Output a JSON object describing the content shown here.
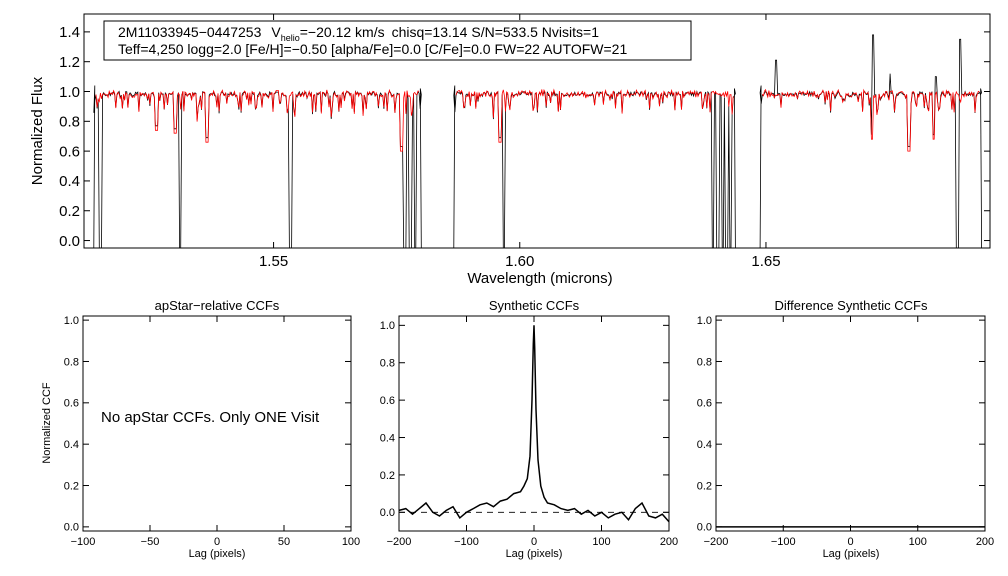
{
  "chart_data": [
    {
      "type": "line",
      "panel": "spectrum",
      "title": "",
      "xlabel": "Wavelength (microns)",
      "ylabel": "Normalized Flux",
      "xlim": [
        1.5115,
        1.6955
      ],
      "ylim": [
        -0.05,
        1.52
      ],
      "xticks": [
        {
          "value": 1.55,
          "label": "1.55"
        },
        {
          "value": 1.6,
          "label": "1.60"
        },
        {
          "value": 1.65,
          "label": "1.65"
        }
      ],
      "yticks": [
        {
          "value": 0.0,
          "label": "0.0"
        },
        {
          "value": 0.2,
          "label": "0.2"
        },
        {
          "value": 0.4,
          "label": "0.4"
        },
        {
          "value": 0.6,
          "label": "0.6"
        },
        {
          "value": 0.8,
          "label": "0.8"
        },
        {
          "value": 1.0,
          "label": "1.0"
        },
        {
          "value": 1.2,
          "label": "1.2"
        },
        {
          "value": 1.4,
          "label": "1.4"
        }
      ],
      "annotation": {
        "line1": {
          "star_id": "2M11033945−0447253",
          "vhelio_prefix": "V",
          "vhelio_sub": "helio",
          "vhelio_value": "=−20.12 km/s",
          "rest": "chisq=13.14  S/N=533.5  Nvisits=1"
        },
        "line2": "Teff=4,250 logg=2.0 [Fe/H]=−0.50 [alpha/Fe]=0.0 [C/Fe]=0.0 FW=22 AUTOFW=21"
      },
      "chips": [
        [
          1.5135,
          1.58
        ],
        [
          1.5866,
          1.6438
        ],
        [
          1.6488,
          1.6938
        ]
      ],
      "series": [
        {
          "name": "observed",
          "color": "#000000"
        },
        {
          "name": "synthetic",
          "color": "#ff0000"
        }
      ],
      "deep_features": [
        1.5148,
        1.531,
        1.5535,
        1.5766,
        1.5778,
        1.5788,
        1.5968,
        1.6392,
        1.6402,
        1.6412,
        1.642,
        1.6428,
        1.6888
      ],
      "emission_spikes": [
        {
          "x": 1.6718,
          "y": 1.38
        },
        {
          "x": 1.6895,
          "y": 1.35
        },
        {
          "x": 1.6752,
          "y": 1.12
        },
        {
          "x": 1.6845,
          "y": 1.1
        },
        {
          "x": 1.652,
          "y": 1.21
        }
      ],
      "red_dips": [
        {
          "x": 1.5262,
          "y": 0.74
        },
        {
          "x": 1.53,
          "y": 0.72
        },
        {
          "x": 1.5365,
          "y": 0.66
        },
        {
          "x": 1.576,
          "y": 0.6
        },
        {
          "x": 1.596,
          "y": 0.66
        },
        {
          "x": 1.6715,
          "y": 0.68
        },
        {
          "x": 1.679,
          "y": 0.6
        },
        {
          "x": 1.684,
          "y": 0.68
        }
      ]
    },
    {
      "type": "line",
      "panel": "apstar",
      "title": "apStar−relative CCFs",
      "xlabel": "Lag (pixels)",
      "ylabel": "Normalized CCF",
      "xlim": [
        -100,
        100
      ],
      "ylim": [
        -0.02,
        1.02
      ],
      "xticks": [
        {
          "value": -100,
          "label": "−100"
        },
        {
          "value": -50,
          "label": "−50"
        },
        {
          "value": 0,
          "label": "0"
        },
        {
          "value": 50,
          "label": "50"
        },
        {
          "value": 100,
          "label": "100"
        }
      ],
      "yticks": [
        {
          "value": 0.0,
          "label": "0.0"
        },
        {
          "value": 0.2,
          "label": "0.2"
        },
        {
          "value": 0.4,
          "label": "0.4"
        },
        {
          "value": 0.6,
          "label": "0.6"
        },
        {
          "value": 0.8,
          "label": "0.8"
        },
        {
          "value": 1.0,
          "label": "1.0"
        }
      ],
      "message": "No apStar CCFs.  Only ONE Visit"
    },
    {
      "type": "line",
      "panel": "synthetic",
      "title": "Synthetic CCFs",
      "xlabel": "Lag (pixels)",
      "xlim": [
        -200,
        200
      ],
      "ylim": [
        -0.1,
        1.05
      ],
      "xticks": [
        {
          "value": -200,
          "label": "−200"
        },
        {
          "value": -100,
          "label": "−100"
        },
        {
          "value": 0,
          "label": "0"
        },
        {
          "value": 100,
          "label": "100"
        },
        {
          "value": 200,
          "label": "200"
        }
      ],
      "yticks": [
        {
          "value": 0.0,
          "label": "0.0"
        },
        {
          "value": 0.2,
          "label": "0.2"
        },
        {
          "value": 0.4,
          "label": "0.4"
        },
        {
          "value": 0.6,
          "label": "0.6"
        },
        {
          "value": 0.8,
          "label": "0.8"
        },
        {
          "value": 1.0,
          "label": "1.0"
        }
      ],
      "zero_line": 0.0,
      "series": [
        {
          "name": "CCF",
          "x": [
            -200,
            -190,
            -180,
            -170,
            -160,
            -150,
            -140,
            -130,
            -120,
            -110,
            -100,
            -90,
            -80,
            -70,
            -60,
            -50,
            -40,
            -30,
            -20,
            -15,
            -10,
            -6,
            -3,
            -1,
            0,
            1,
            3,
            6,
            10,
            15,
            20,
            30,
            40,
            50,
            60,
            70,
            80,
            90,
            100,
            110,
            120,
            130,
            140,
            150,
            160,
            170,
            180,
            190,
            200
          ],
          "y": [
            0.01,
            0.02,
            -0.01,
            0.02,
            0.05,
            0.0,
            -0.02,
            0.01,
            0.03,
            -0.03,
            0.0,
            0.02,
            0.04,
            0.05,
            0.03,
            0.06,
            0.07,
            0.1,
            0.11,
            0.14,
            0.18,
            0.3,
            0.6,
            0.9,
            1.0,
            0.88,
            0.55,
            0.28,
            0.14,
            0.08,
            0.05,
            0.04,
            0.02,
            0.01,
            0.02,
            -0.01,
            0.01,
            -0.02,
            0.0,
            -0.03,
            -0.01,
            0.0,
            -0.04,
            0.02,
            0.05,
            -0.02,
            -0.03,
            -0.01,
            -0.05
          ]
        }
      ]
    },
    {
      "type": "line",
      "panel": "difference",
      "title": "Difference Synthetic CCFs",
      "xlabel": "Lag (pixels)",
      "xlim": [
        -200,
        200
      ],
      "ylim": [
        -0.02,
        1.02
      ],
      "xticks": [
        {
          "value": -200,
          "label": "−200"
        },
        {
          "value": -100,
          "label": "−100"
        },
        {
          "value": 0,
          "label": "0"
        },
        {
          "value": 100,
          "label": "100"
        },
        {
          "value": 200,
          "label": "200"
        }
      ],
      "yticks": [
        {
          "value": 0.0,
          "label": "0.0"
        },
        {
          "value": 0.2,
          "label": "0.2"
        },
        {
          "value": 0.4,
          "label": "0.4"
        },
        {
          "value": 0.6,
          "label": "0.6"
        },
        {
          "value": 0.8,
          "label": "0.8"
        },
        {
          "value": 1.0,
          "label": "1.0"
        }
      ],
      "series": [
        {
          "name": "difference",
          "x": [
            -200,
            200
          ],
          "y": [
            0.0,
            0.0
          ]
        }
      ]
    }
  ]
}
